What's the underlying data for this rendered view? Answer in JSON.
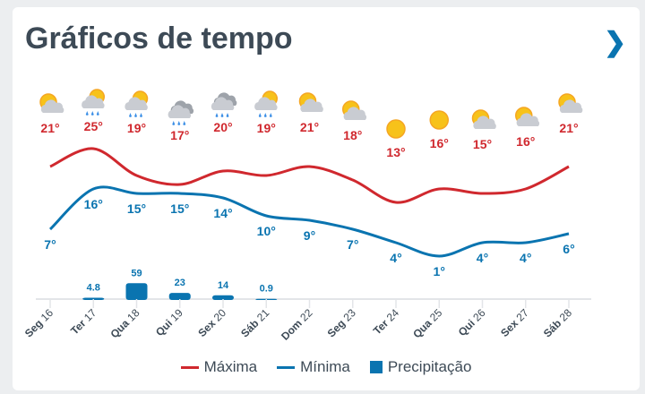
{
  "title": "Gráficos de tempo",
  "next_icon": "chevron-right-icon",
  "colors": {
    "max": "#d0282e",
    "min": "#0a74b0",
    "precip": "#0a74b0",
    "text": "#3d4a56"
  },
  "legend": {
    "max": "Máxima",
    "min": "Mínima",
    "precip": "Precipitação"
  },
  "chart_data": {
    "type": "line",
    "categories": [
      {
        "weekday": "Seg",
        "day": "16"
      },
      {
        "weekday": "Ter",
        "day": "17"
      },
      {
        "weekday": "Qua",
        "day": "18"
      },
      {
        "weekday": "Qui",
        "day": "19"
      },
      {
        "weekday": "Sex",
        "day": "20"
      },
      {
        "weekday": "Sáb",
        "day": "21"
      },
      {
        "weekday": "Dom",
        "day": "22"
      },
      {
        "weekday": "Seg",
        "day": "23"
      },
      {
        "weekday": "Ter",
        "day": "24"
      },
      {
        "weekday": "Qua",
        "day": "25"
      },
      {
        "weekday": "Qui",
        "day": "26"
      },
      {
        "weekday": "Sex",
        "day": "27"
      },
      {
        "weekday": "Sáb",
        "day": "28"
      }
    ],
    "icons": [
      "partly-cloudy",
      "partly-cloudy-rain",
      "partly-cloudy-rain",
      "rain",
      "rain",
      "partly-cloudy-rain",
      "partly-cloudy",
      "partly-cloudy",
      "sunny",
      "sunny",
      "partly-cloudy",
      "partly-cloudy",
      "partly-cloudy"
    ],
    "series": [
      {
        "name": "Máxima",
        "type": "line",
        "values": [
          21,
          25,
          19,
          17,
          20,
          19,
          21,
          18,
          13,
          16,
          15,
          16,
          21
        ]
      },
      {
        "name": "Mínima",
        "type": "line",
        "values": [
          7,
          16,
          15,
          15,
          14,
          10,
          9,
          7,
          4,
          1,
          4,
          4,
          6
        ]
      },
      {
        "name": "Precipitação",
        "type": "bar",
        "values": [
          null,
          4.8,
          59,
          23,
          14,
          0.9,
          null,
          null,
          null,
          null,
          null,
          null,
          null
        ]
      }
    ],
    "unit": "°"
  }
}
